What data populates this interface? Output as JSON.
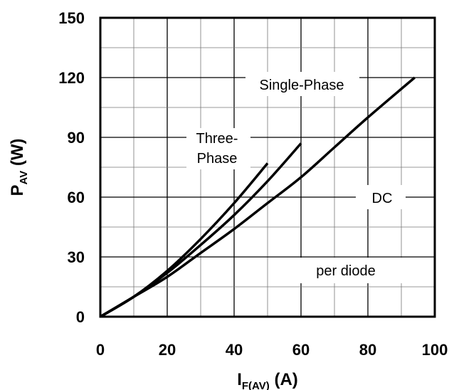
{
  "chart_data": {
    "type": "line",
    "title": "",
    "xlabel": {
      "main": "I",
      "sub": "F(AV)",
      "unit": " (A)"
    },
    "ylabel": {
      "main": "P",
      "sub": "AV",
      "unit": " (W)"
    },
    "xlim": [
      0,
      100
    ],
    "ylim": [
      0,
      150
    ],
    "x_major_ticks": [
      0,
      20,
      40,
      60,
      80,
      100
    ],
    "y_major_ticks": [
      0,
      30,
      60,
      90,
      120,
      150
    ],
    "x_tick_labels": [
      "0",
      "20",
      "40",
      "60",
      "80",
      "100"
    ],
    "y_tick_labels": [
      "0",
      "30",
      "60",
      "90",
      "120",
      "150"
    ],
    "x_minor_step": 10,
    "y_minor_step": 15,
    "grid": true,
    "series": [
      {
        "name": "Three-Phase",
        "x": [
          0,
          10,
          20,
          30,
          40,
          50
        ],
        "y": [
          0,
          10,
          23,
          39,
          57,
          77
        ]
      },
      {
        "name": "Single-Phase",
        "x": [
          0,
          10,
          20,
          30,
          40,
          50,
          60
        ],
        "y": [
          0,
          10,
          22,
          36,
          51,
          68,
          87
        ]
      },
      {
        "name": "DC",
        "x": [
          0,
          10,
          20,
          30,
          40,
          50,
          60,
          70,
          80,
          94
        ],
        "y": [
          0,
          10,
          20,
          32,
          44,
          57,
          70,
          85,
          100,
          120
        ]
      }
    ],
    "annotations": {
      "single_phase": "Single-Phase",
      "three_phase_line1": "Three-",
      "three_phase_line2": "Phase",
      "dc": "DC",
      "note": "per diode"
    }
  }
}
